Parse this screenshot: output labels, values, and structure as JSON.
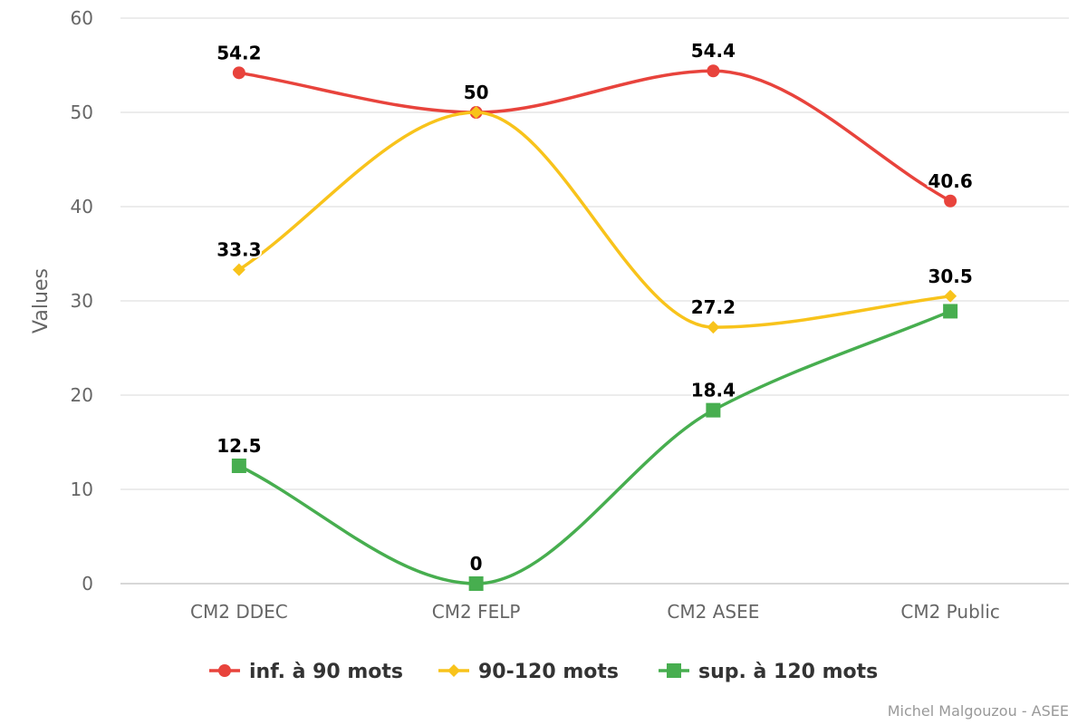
{
  "chart_data": {
    "type": "line",
    "categories": [
      "CM2 DDEC",
      "CM2 FELP",
      "CM2 ASEE",
      "CM2 Public"
    ],
    "ylabel": "Values",
    "ylim": [
      0,
      60
    ],
    "yticks": [
      0,
      10,
      20,
      30,
      40,
      50,
      60
    ],
    "grid": true,
    "legend_position": "bottom",
    "series": [
      {
        "name": "inf. à 90 mots",
        "values": [
          54.2,
          50.0,
          54.4,
          40.6
        ],
        "labels": [
          "54.2",
          "",
          "54.4",
          "40.6"
        ],
        "color": "#e8433c",
        "marker": "circle"
      },
      {
        "name": "90-120 mots",
        "values": [
          33.3,
          50.0,
          27.2,
          30.5
        ],
        "labels": [
          "33.3",
          "50",
          "27.2",
          "30.5"
        ],
        "color": "#f8c31b",
        "marker": "diamond"
      },
      {
        "name": "sup. à 120 mots",
        "values": [
          12.5,
          0,
          18.4,
          28.9
        ],
        "labels": [
          "12.5",
          "0",
          "18.4",
          ""
        ],
        "color": "#47ae4f",
        "marker": "square"
      }
    ],
    "credit": "Michel Malgouzou - ASEE"
  }
}
